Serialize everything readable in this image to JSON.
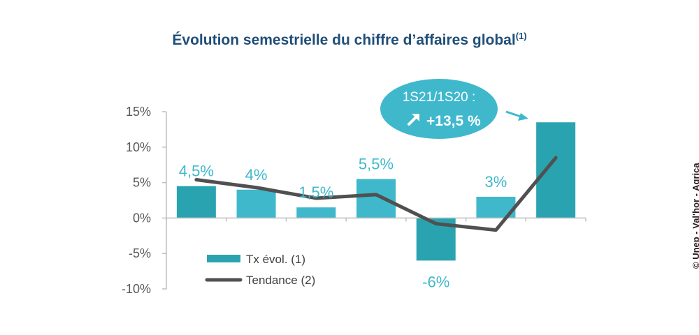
{
  "credit": "© Unep - Val'hor - Agrica",
  "chart_data": {
    "type": "bar",
    "title": "Évolution semestrielle du chiffre d’affaires global",
    "title_superscript": "(1)",
    "xlabel": "",
    "ylabel": "",
    "ylim": [
      -10,
      15
    ],
    "y_ticks": [
      15,
      10,
      5,
      0,
      -5,
      -10
    ],
    "y_tick_labels": [
      "15%",
      "10%",
      "5%",
      "0%",
      "-5%",
      "-10%"
    ],
    "grid": false,
    "legend_position": "bottom-left",
    "categories": [
      "",
      "",
      "",
      "",
      "",
      "",
      ""
    ],
    "series": [
      {
        "name": "Tx évol. (1)",
        "type": "bar",
        "values": [
          4.5,
          4,
          1.5,
          5.5,
          -6,
          3,
          13.5
        ],
        "labels": [
          "4,5%",
          "4%",
          "1,5%",
          "5,5%",
          "-6%",
          "3%",
          ""
        ],
        "color": "#3fb8cc",
        "dark_color": "#2aa3b0"
      },
      {
        "name": "Tendance (2)",
        "type": "line",
        "values": [
          5.4,
          4.3,
          2.8,
          3.3,
          -0.8,
          -1.7,
          8.5
        ],
        "color": "#505050"
      }
    ],
    "annotation": {
      "line1": "1S21/1S20 :",
      "line2": "+13,5 %",
      "color": "#3fb8cc",
      "icon": "arrow-up-right-icon"
    }
  }
}
